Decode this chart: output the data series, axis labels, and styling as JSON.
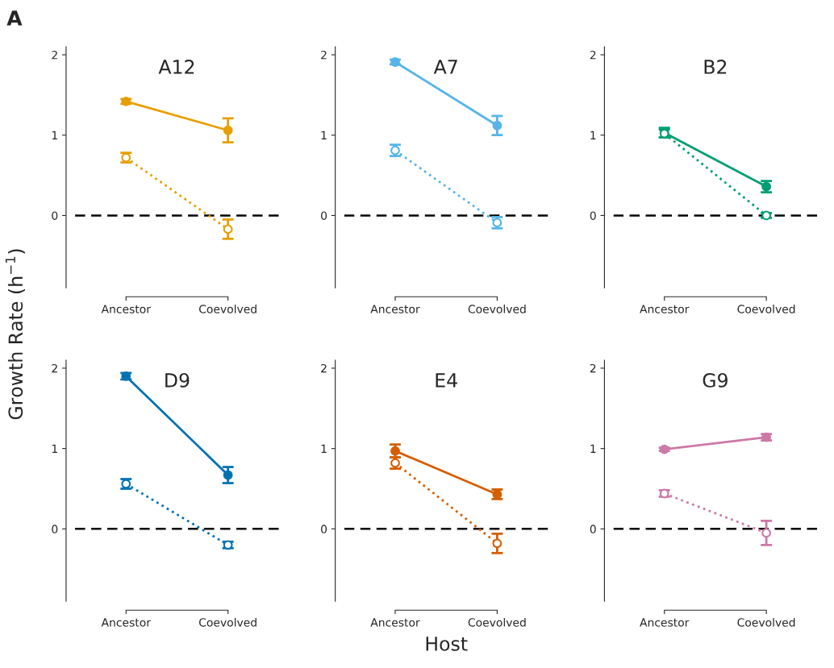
{
  "chart_data": [
    {
      "type": "line",
      "title": "A12",
      "ylabel": "Growth Rate (h$^{−1}$)",
      "annotations": [
        "A"
      ],
      "categories": [
        "Ancestor",
        "Coevolved"
      ],
      "ylim": [
        -0.9,
        2.1
      ],
      "yticks": [
        0,
        1,
        2
      ],
      "marker": "circle",
      "grid": false,
      "ref_lines": [
        {
          "axis": "y",
          "value": 0,
          "color": "#000000",
          "line_style": "dashed"
        }
      ],
      "series": [
        {
          "color": "#e69f00",
          "values": [
            1.42,
            1.06
          ],
          "errors": [
            0.03,
            0.15
          ],
          "line_style": "solid"
        },
        {
          "color": "#e69f00",
          "values": [
            0.72,
            -0.17
          ],
          "errors": [
            0.06,
            0.12
          ],
          "line_style": "dotted"
        }
      ]
    },
    {
      "type": "line",
      "title": "A7",
      "categories": [
        "Ancestor",
        "Coevolved"
      ],
      "ylim": [
        -0.9,
        2.1
      ],
      "yticks": [
        0,
        1,
        2
      ],
      "marker": "circle",
      "grid": false,
      "ref_lines": [
        {
          "axis": "y",
          "value": 0,
          "color": "#000000",
          "line_style": "dashed"
        }
      ],
      "series": [
        {
          "color": "#56b4e9",
          "values": [
            1.91,
            1.12
          ],
          "errors": [
            0.03,
            0.12
          ],
          "line_style": "solid"
        },
        {
          "color": "#56b4e9",
          "values": [
            0.81,
            -0.09
          ],
          "errors": [
            0.07,
            0.07
          ],
          "line_style": "dotted"
        }
      ]
    },
    {
      "type": "line",
      "title": "B2",
      "categories": [
        "Ancestor",
        "Coevolved"
      ],
      "ylim": [
        -0.9,
        2.1
      ],
      "yticks": [
        0,
        1,
        2
      ],
      "marker": "circle",
      "grid": false,
      "ref_lines": [
        {
          "axis": "y",
          "value": 0,
          "color": "#000000",
          "line_style": "dashed"
        }
      ],
      "series": [
        {
          "color": "#009e73",
          "values": [
            1.03,
            0.36
          ],
          "errors": [
            0.06,
            0.07
          ],
          "line_style": "solid"
        },
        {
          "color": "#009e73",
          "values": [
            1.02,
            0.0
          ],
          "errors": [
            0.05,
            0.03
          ],
          "line_style": "dotted"
        }
      ]
    },
    {
      "type": "line",
      "title": "D9",
      "categories": [
        "Ancestor",
        "Coevolved"
      ],
      "ylim": [
        -0.9,
        2.1
      ],
      "yticks": [
        0,
        1,
        2
      ],
      "marker": "circle",
      "grid": false,
      "ref_lines": [
        {
          "axis": "y",
          "value": 0,
          "color": "#000000",
          "line_style": "dashed"
        }
      ],
      "series": [
        {
          "color": "#0072b2",
          "values": [
            1.9,
            0.67
          ],
          "errors": [
            0.04,
            0.1
          ],
          "line_style": "solid"
        },
        {
          "color": "#0072b2",
          "values": [
            0.56,
            -0.2
          ],
          "errors": [
            0.06,
            0.04
          ],
          "line_style": "dotted"
        }
      ]
    },
    {
      "type": "line",
      "title": "E4",
      "xlabel": "Host",
      "categories": [
        "Ancestor",
        "Coevolved"
      ],
      "ylim": [
        -0.9,
        2.1
      ],
      "yticks": [
        0,
        1,
        2
      ],
      "marker": "circle",
      "grid": false,
      "ref_lines": [
        {
          "axis": "y",
          "value": 0,
          "color": "#000000",
          "line_style": "dashed"
        }
      ],
      "series": [
        {
          "color": "#d55e00",
          "values": [
            0.97,
            0.43
          ],
          "errors": [
            0.08,
            0.06
          ],
          "line_style": "solid"
        },
        {
          "color": "#d55e00",
          "values": [
            0.82,
            -0.18
          ],
          "errors": [
            0.07,
            0.12
          ],
          "line_style": "dotted"
        }
      ]
    },
    {
      "type": "line",
      "title": "G9",
      "categories": [
        "Ancestor",
        "Coevolved"
      ],
      "ylim": [
        -0.9,
        2.1
      ],
      "yticks": [
        0,
        1,
        2
      ],
      "marker": "circle",
      "grid": false,
      "ref_lines": [
        {
          "axis": "y",
          "value": 0,
          "color": "#000000",
          "line_style": "dashed"
        }
      ],
      "series": [
        {
          "color": "#cc79a7",
          "values": [
            0.99,
            1.14
          ],
          "errors": [
            0.02,
            0.04
          ],
          "line_style": "solid"
        },
        {
          "color": "#cc79a7",
          "values": [
            0.44,
            -0.05
          ],
          "errors": [
            0.04,
            0.15
          ],
          "line_style": "dotted"
        }
      ]
    }
  ]
}
